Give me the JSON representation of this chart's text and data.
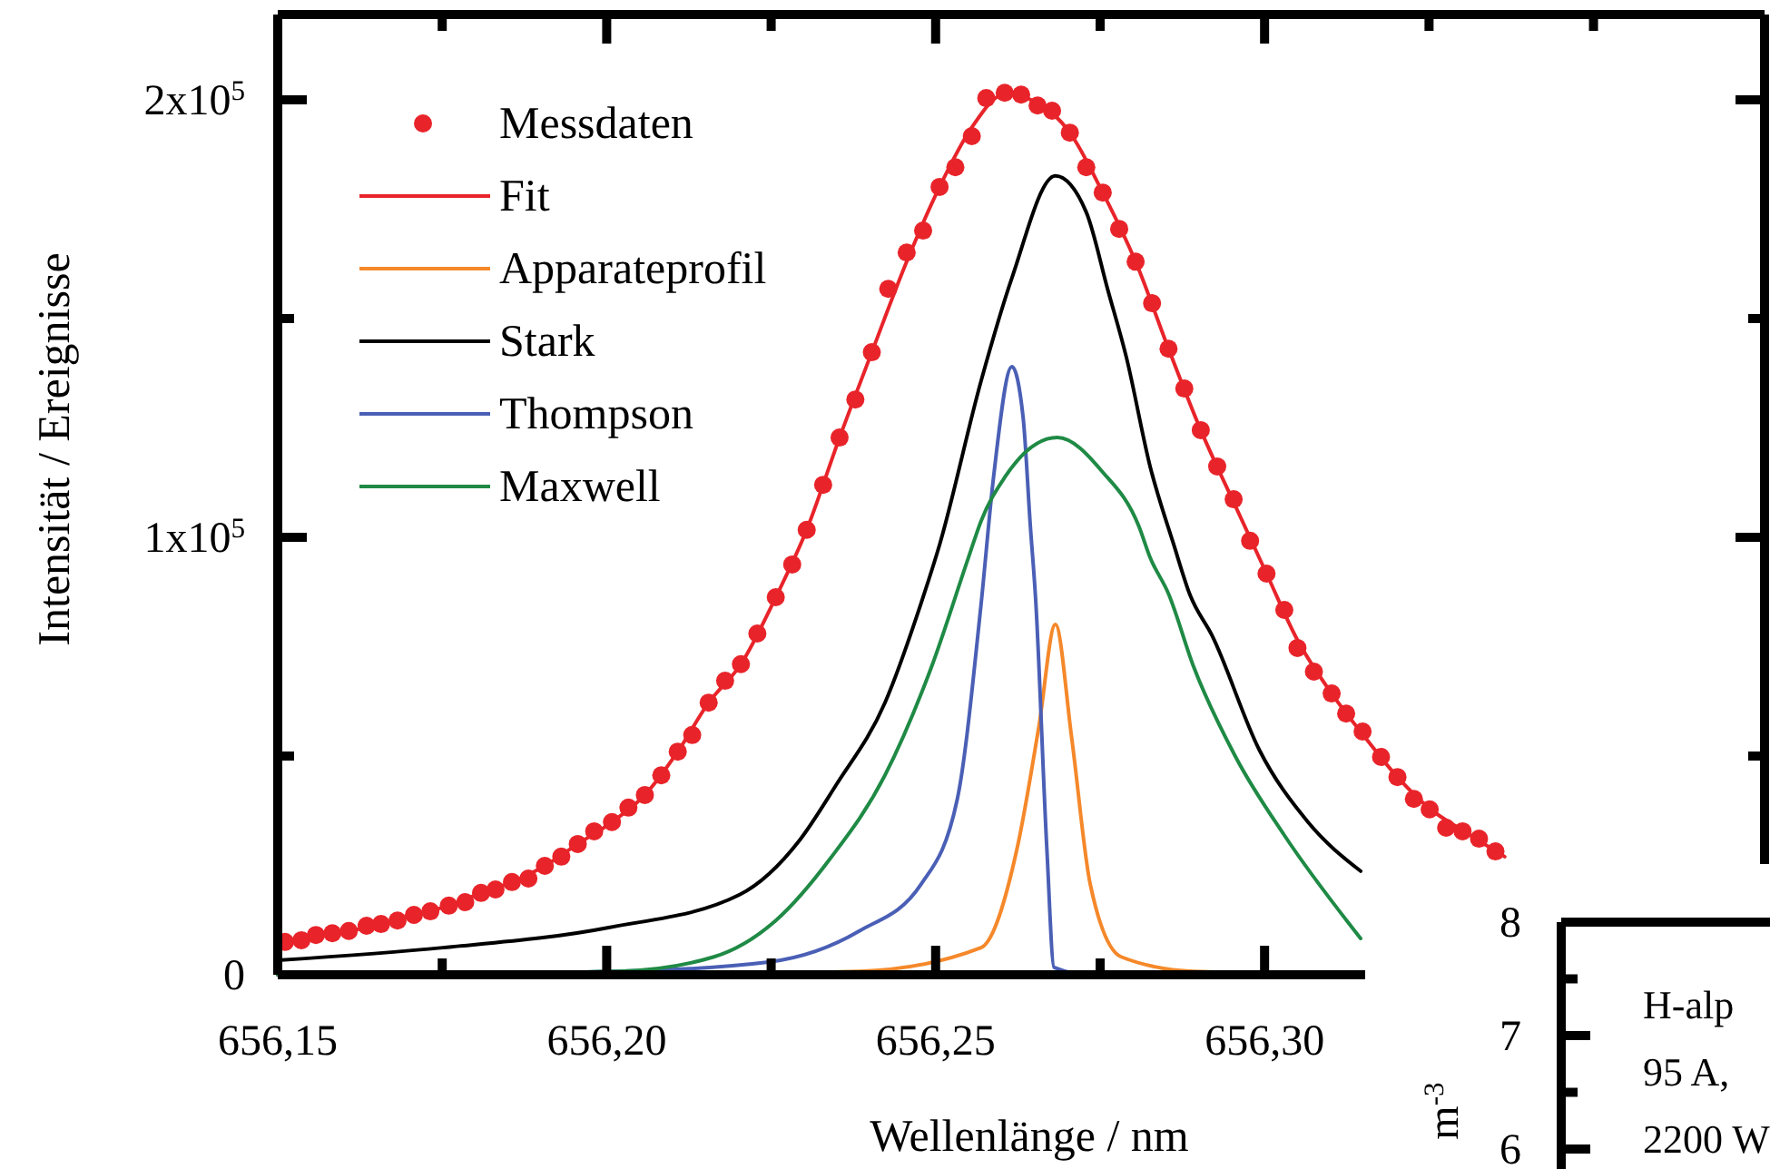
{
  "chart_data": [
    {
      "type": "line",
      "xlabel": "Wellenlänge / nm",
      "ylabel": "Intensität / Ereignisse",
      "xlim": [
        656.15,
        656.376
      ],
      "ylim": [
        0,
        219500
      ],
      "xticks": [
        {
          "value": 656.15,
          "label": "656,15"
        },
        {
          "value": 656.175,
          "label": null
        },
        {
          "value": 656.2,
          "label": "656,20"
        },
        {
          "value": 656.225,
          "label": null
        },
        {
          "value": 656.25,
          "label": "656,25"
        },
        {
          "value": 656.275,
          "label": null
        },
        {
          "value": 656.3,
          "label": "656,30"
        },
        {
          "value": 656.325,
          "label": null
        },
        {
          "value": 656.35,
          "label": null
        }
      ],
      "yticks": [
        0,
        {
          "value": 50000,
          "label": null
        },
        {
          "value": 100000,
          "label": "1x10$^{5}$"
        },
        {
          "value": 150000,
          "label": null
        },
        {
          "value": 200000,
          "label": "2x10$^{5}$"
        }
      ],
      "legend": "top left",
      "grid": false,
      "series": [
        {
          "name": "Messdaten",
          "type": "scatter",
          "marker": "circle",
          "color": "#e8242a",
          "x": [
            656.1511,
            656.1536,
            656.1558,
            656.1583,
            656.1608,
            656.1635,
            656.1657,
            656.1682,
            656.1707,
            656.1732,
            656.176,
            656.1785,
            656.1809,
            656.1831,
            656.1856,
            656.1881,
            656.1906,
            656.1931,
            656.1956,
            656.1981,
            656.2008,
            656.2033,
            656.2058,
            656.2083,
            656.2108,
            656.213,
            656.2155,
            656.218,
            656.2204,
            656.2229,
            656.2257,
            656.2282,
            656.2304,
            656.2329,
            656.2354,
            656.2378,
            656.2403,
            656.2428,
            656.2456,
            656.2481,
            656.2506,
            656.253,
            656.2555,
            656.2577,
            656.2605,
            656.263,
            656.2655,
            656.2677,
            656.2704,
            656.2729,
            656.2754,
            656.2779,
            656.2804,
            656.2829,
            656.2854,
            656.2878,
            656.2903,
            656.2928,
            656.2953,
            656.2978,
            656.3003,
            656.303,
            656.305,
            656.3075,
            656.3102,
            656.3124,
            656.3149,
            656.3177,
            656.3202,
            656.3227,
            656.3251,
            656.3276,
            656.3301,
            656.3326,
            656.3351
          ],
          "values": [
            7500,
            7900,
            9100,
            9500,
            10000,
            11200,
            11600,
            12400,
            13700,
            14500,
            15800,
            16600,
            18700,
            19500,
            21200,
            22000,
            24900,
            27000,
            29900,
            32800,
            34900,
            38200,
            41100,
            45600,
            51000,
            54800,
            62200,
            67200,
            71000,
            78000,
            86300,
            93800,
            101700,
            112000,
            122800,
            131500,
            142300,
            156800,
            165100,
            170100,
            180100,
            184600,
            191700,
            200400,
            201600,
            201200,
            198700,
            197500,
            192500,
            184600,
            178800,
            170500,
            163000,
            153500,
            143100,
            134000,
            124500,
            116200,
            108700,
            99200,
            91700,
            83400,
            74700,
            69300,
            64300,
            59700,
            55600,
            49800,
            45200,
            40200,
            37800,
            33600,
            32800,
            31100,
            28200
          ]
        },
        {
          "name": "Fit",
          "type": "line",
          "color": "#e8242a",
          "x": [
            656.15,
            656.1558,
            656.1608,
            656.1657,
            656.1707,
            656.176,
            656.1809,
            656.1856,
            656.1906,
            656.1956,
            656.2008,
            656.2058,
            656.2108,
            656.2155,
            656.2204,
            656.2257,
            656.2304,
            656.2354,
            656.2403,
            656.2456,
            656.2506,
            656.2555,
            656.2605,
            656.2655,
            656.2704,
            656.2754,
            656.2804,
            656.2854,
            656.2903,
            656.2953,
            656.3003,
            656.305,
            656.3102,
            656.3149,
            656.3202,
            656.3251,
            656.3301,
            656.3365
          ],
          "values": [
            7200,
            9100,
            10000,
            11600,
            13700,
            15800,
            18700,
            21200,
            24900,
            29900,
            34900,
            41100,
            51000,
            62200,
            71000,
            86300,
            101700,
            122800,
            142300,
            163000,
            180100,
            193700,
            201300,
            199300,
            192500,
            178800,
            163000,
            143100,
            124500,
            108000,
            91700,
            76500,
            64300,
            55000,
            45200,
            38000,
            33000,
            27000
          ]
        },
        {
          "name": "Apparateprofil",
          "type": "line",
          "color": "#f5882a",
          "x": [
            656.15,
            656.2017,
            656.2384,
            656.2569,
            656.2624,
            656.2657,
            656.2682,
            656.2707,
            656.2735,
            656.2782,
            656.2892,
            656.3146
          ],
          "values": [
            0,
            0,
            800,
            6200,
            29000,
            56800,
            80100,
            53900,
            20700,
            4100,
            800,
            0
          ]
        },
        {
          "name": "Stark",
          "type": "line",
          "color": "#000000",
          "x": [
            656.15,
            656.1751,
            656.2003,
            656.2202,
            656.2293,
            656.2348,
            656.2423,
            656.2478,
            656.2506,
            656.2569,
            656.2616,
            656.2682,
            656.2729,
            656.2762,
            656.279,
            656.2826,
            656.2862,
            656.2887,
            656.292,
            656.2992,
            656.3066,
            656.3146
          ],
          "values": [
            3300,
            6200,
            10800,
            18300,
            30700,
            43200,
            62200,
            85000,
            98300,
            135700,
            159300,
            182600,
            174300,
            156400,
            141100,
            116200,
            98300,
            86700,
            77600,
            51400,
            34900,
            23700
          ]
        },
        {
          "name": "Thompson",
          "type": "line",
          "color": "#4a5fb5",
          "x": [
            656.15,
            656.2017,
            656.2246,
            656.2384,
            656.2478,
            656.2533,
            656.2569,
            656.2588,
            656.2616,
            656.2633,
            656.2644,
            656.2652,
            656.2669,
            656.268,
            656.2735,
            656.3146
          ],
          "values": [
            0,
            800,
            2900,
            10000,
            20700,
            40200,
            84600,
            113700,
            139000,
            127400,
            102500,
            85900,
            29000,
            1700,
            0,
            0
          ]
        },
        {
          "name": "Maxwell",
          "type": "line",
          "color": "#1f8a45",
          "x": [
            656.15,
            656.2017,
            656.2163,
            656.2257,
            656.234,
            656.2423,
            656.2494,
            656.255,
            656.2569,
            656.2605,
            656.2685,
            656.2754,
            656.2809,
            656.2826,
            656.2854,
            656.2892,
            656.2956,
            656.303,
            656.3146
          ],
          "values": [
            0,
            800,
            4100,
            12400,
            26600,
            45600,
            70500,
            95400,
            103700,
            113700,
            122800,
            114900,
            102500,
            95400,
            87100,
            70500,
            49800,
            31900,
            8300
          ]
        }
      ]
    },
    {
      "type": "other",
      "ylabel": "m$^{-3}$",
      "annotations": [
        "8",
        "7",
        "6",
        "H-alp",
        "95 A,",
        "2200 W"
      ]
    }
  ]
}
